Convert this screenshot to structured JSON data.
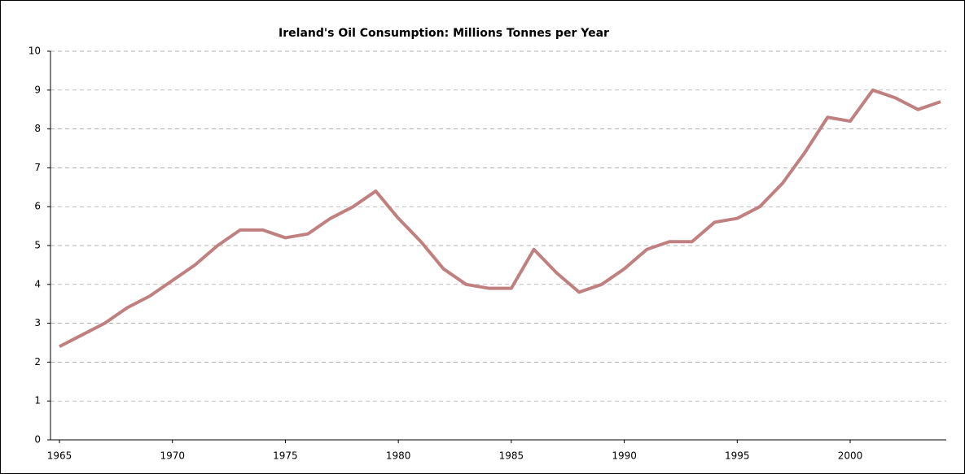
{
  "chart_data": {
    "type": "line",
    "title": "Ireland's Oil Consumption: Millions Tonnes per Year",
    "x": [
      1965,
      1966,
      1967,
      1968,
      1969,
      1970,
      1971,
      1972,
      1973,
      1974,
      1975,
      1976,
      1977,
      1978,
      1979,
      1980,
      1981,
      1982,
      1983,
      1984,
      1985,
      1986,
      1987,
      1988,
      1989,
      1990,
      1991,
      1992,
      1993,
      1994,
      1995,
      1996,
      1997,
      1998,
      1999,
      2000,
      2001,
      2002,
      2003,
      2004
    ],
    "series": [
      {
        "name": "Oil consumption",
        "color": "#c0807f",
        "values": [
          2.4,
          2.7,
          3.0,
          3.4,
          3.7,
          4.1,
          4.5,
          5.0,
          5.4,
          5.4,
          5.2,
          5.3,
          5.7,
          6.0,
          6.4,
          5.7,
          5.1,
          4.4,
          4.0,
          3.9,
          3.9,
          4.9,
          4.3,
          3.8,
          4.0,
          4.4,
          4.9,
          5.1,
          5.1,
          5.6,
          5.7,
          6.0,
          6.6,
          7.4,
          8.3,
          8.2,
          9.0,
          8.8,
          8.5,
          8.7
        ]
      }
    ],
    "xlim": [
      1965,
      2004
    ],
    "xticks": [
      1965,
      1970,
      1975,
      1980,
      1985,
      1990,
      1995,
      2000
    ],
    "ylim": [
      0,
      10
    ],
    "yticks": [
      0,
      1,
      2,
      3,
      4,
      5,
      6,
      7,
      8,
      9,
      10
    ],
    "grid": true
  }
}
